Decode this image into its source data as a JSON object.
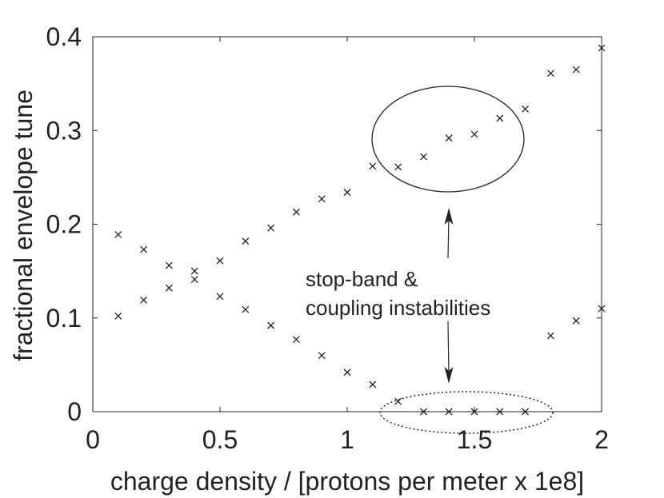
{
  "chart_data": {
    "type": "scatter",
    "xlabel": "charge density / [protons per meter x 1e8]",
    "ylabel": "fractional envelope tune",
    "xlim": [
      0,
      2
    ],
    "ylim": [
      0,
      0.4
    ],
    "xticks": [
      0,
      0.5,
      1,
      1.5,
      2
    ],
    "xtick_labels": [
      "0",
      "0.5",
      "1",
      "1.5",
      "2"
    ],
    "yticks": [
      0,
      0.1,
      0.2,
      0.3,
      0.4
    ],
    "ytick_labels": [
      "0",
      "0.1",
      "0.2",
      "0.3",
      "0.4"
    ],
    "grid": false,
    "marker": "x",
    "series": [
      {
        "x": [
          0.1,
          0.2,
          0.3,
          0.4,
          0.5,
          0.6,
          0.7,
          0.8,
          0.9,
          1.0,
          1.1,
          1.2,
          1.3,
          1.4,
          1.5,
          1.6,
          1.7,
          1.8,
          1.9,
          2.0
        ],
        "y": [
          0.189,
          0.173,
          0.156,
          0.15,
          0.161,
          0.182,
          0.196,
          0.213,
          0.227,
          0.234,
          0.262,
          0.261,
          0.272,
          0.292,
          0.296,
          0.313,
          0.323,
          0.361,
          0.365,
          0.388
        ]
      },
      {
        "x": [
          0.1,
          0.2,
          0.3,
          0.4,
          0.5,
          0.6,
          0.7,
          0.8,
          0.9,
          1.0,
          1.1,
          1.2,
          1.3,
          1.4,
          1.5,
          1.6,
          1.7,
          1.8,
          1.9,
          2.0
        ],
        "y": [
          0.102,
          0.119,
          0.132,
          0.141,
          0.123,
          0.109,
          0.092,
          0.077,
          0.06,
          0.042,
          0.029,
          0.011,
          0.0,
          0.0,
          0.0,
          0.0,
          0.0,
          0.081,
          0.097,
          0.11
        ]
      }
    ],
    "annotation": {
      "lines": [
        "stop-band &",
        "coupling instabilities"
      ]
    }
  }
}
